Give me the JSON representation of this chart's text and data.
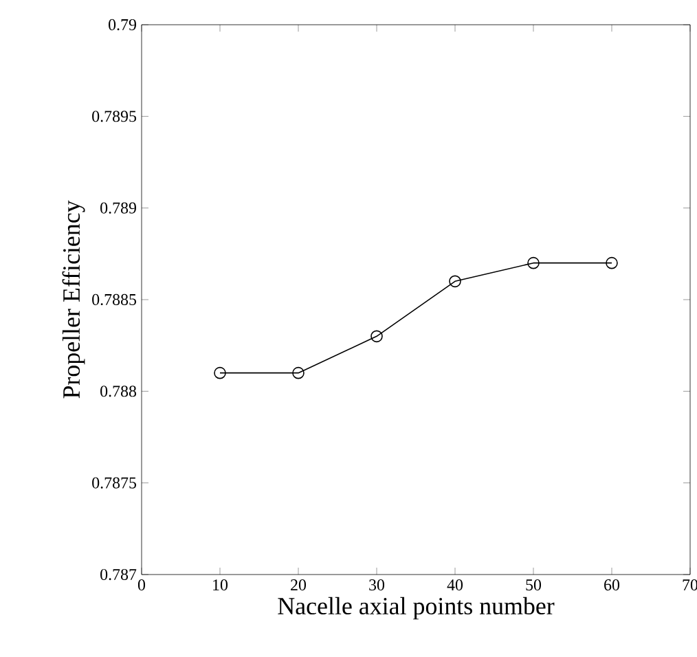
{
  "chart_data": {
    "type": "line",
    "xlabel": "Nacelle axial points number",
    "ylabel": "Propeller Efficiency",
    "x": [
      10,
      20,
      30,
      40,
      50,
      60
    ],
    "series": [
      {
        "color": "#000000",
        "values": [
          0.7881,
          0.7881,
          0.7883,
          0.7886,
          0.7887,
          0.7887
        ]
      }
    ],
    "xlim": [
      0,
      70
    ],
    "xticks": [
      0,
      10,
      20,
      30,
      40,
      50,
      60,
      70
    ],
    "ylim": [
      0.787,
      0.79
    ],
    "yticks": [
      0.787,
      0.7875,
      0.788,
      0.7885,
      0.789,
      0.7895,
      0.79
    ],
    "grid": false,
    "marker": "circle",
    "line_style": "solid"
  }
}
